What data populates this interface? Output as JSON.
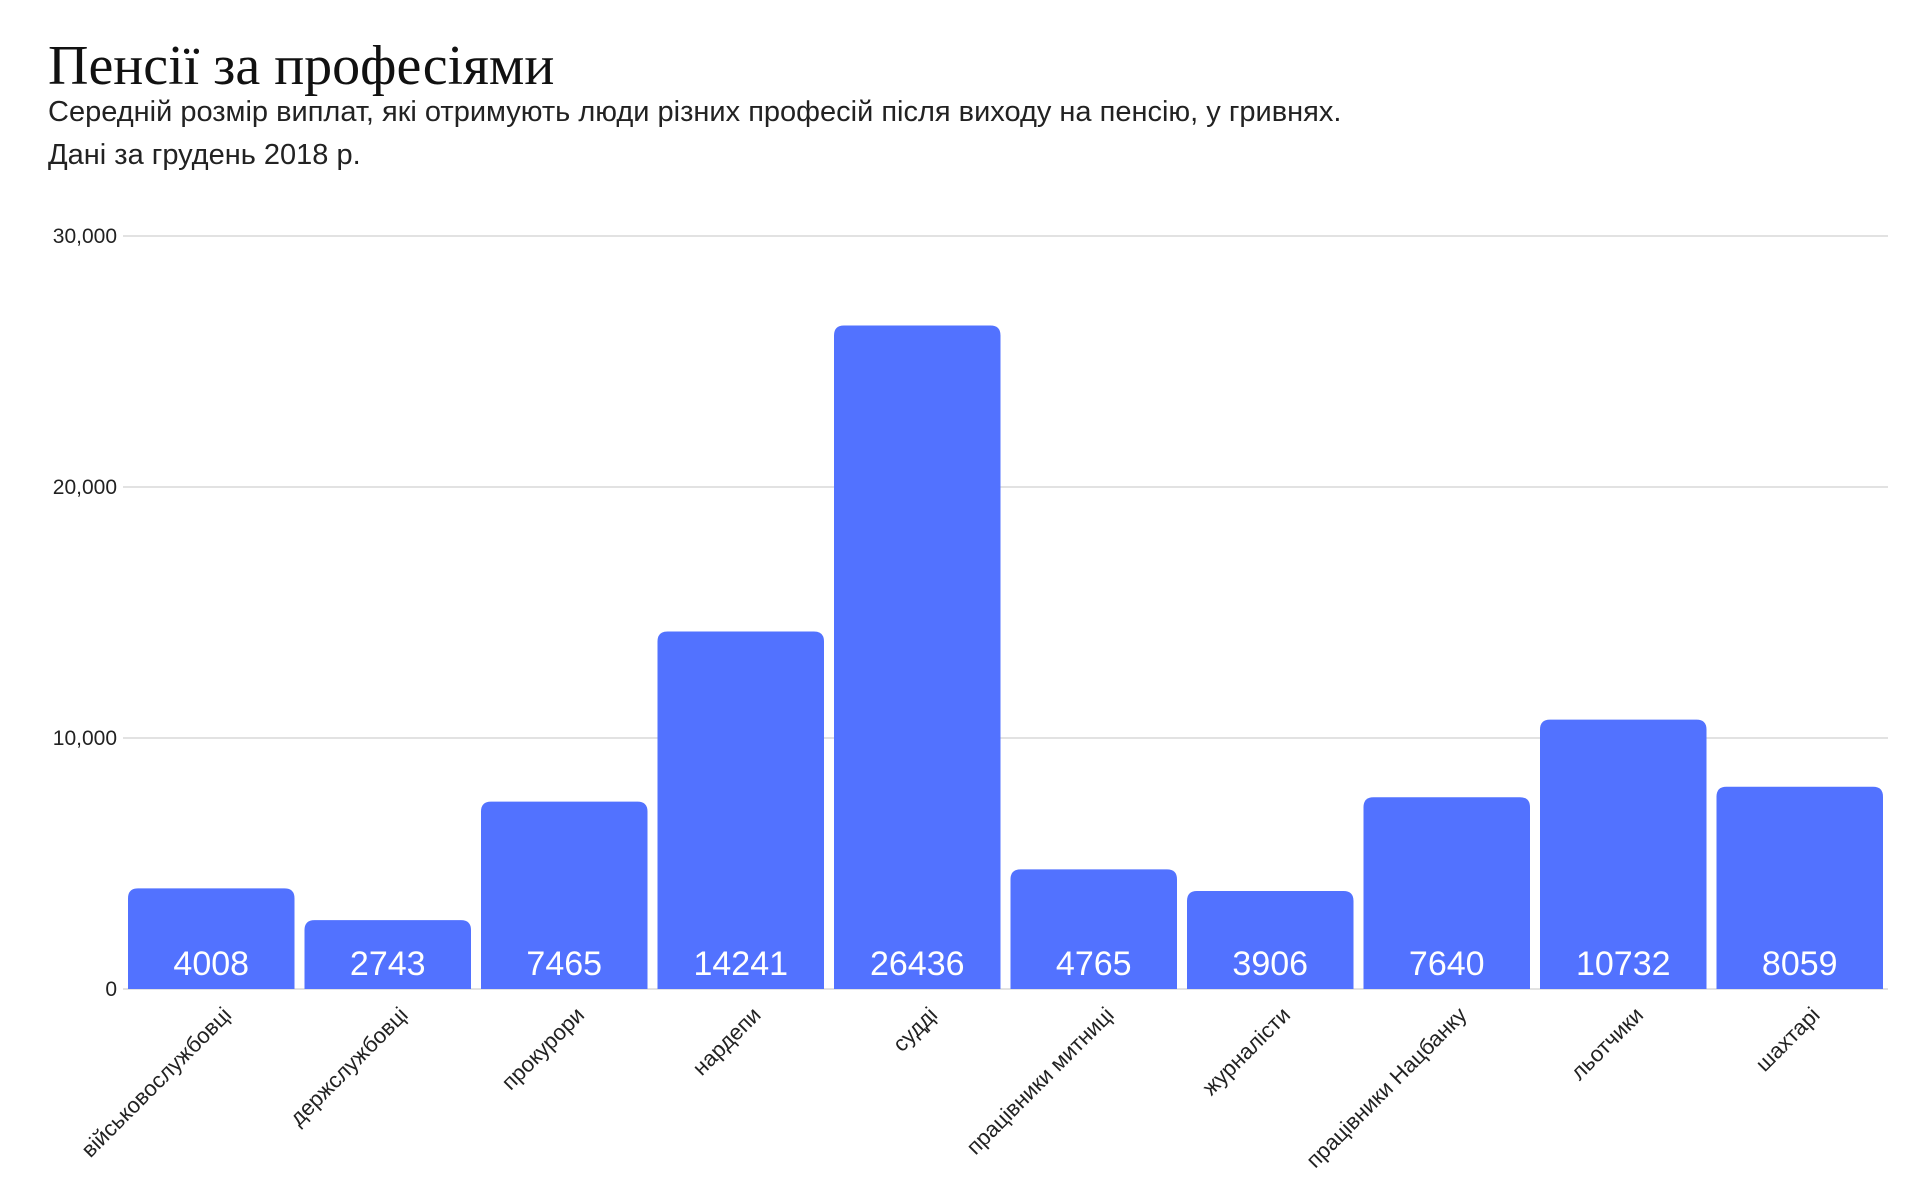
{
  "header": {
    "title": "Пенсії за професіями",
    "subtitle_line1": "Середній розмір виплат, які отримують люди різних професій після виходу на пенсію, у гривнях.",
    "subtitle_line2": "Дані за грудень 2018 р."
  },
  "colors": {
    "bar": "#5272FF",
    "grid": "#d9d9d9",
    "value_label": "#ffffff"
  },
  "chart_data": {
    "type": "bar",
    "title": "Пенсії за професіями",
    "subtitle": "Середній розмір виплат, які отримують люди різних професій після виходу на пенсію, у гривнях. Дані за грудень 2018 р.",
    "xlabel": "",
    "ylabel": "",
    "ylim": [
      0,
      30000
    ],
    "yticks": [
      0,
      10000,
      20000,
      30000
    ],
    "ytick_labels": [
      "0",
      "10,000",
      "20,000",
      "30,000"
    ],
    "grid": true,
    "legend": "none",
    "categories": [
      "військовослужбовці",
      "держслужбовці",
      "прокурори",
      "нардепи",
      "судді",
      "працівники митниці",
      "журналісти",
      "працівники Нацбанку",
      "льотчики",
      "шахтарі"
    ],
    "values": [
      4008,
      2743,
      7465,
      14241,
      26436,
      4765,
      3906,
      7640,
      10732,
      8059
    ],
    "value_labels": [
      "4008",
      "2743",
      "7465",
      "14241",
      "26436",
      "4765",
      "3906",
      "7640",
      "10732",
      "8059"
    ]
  }
}
